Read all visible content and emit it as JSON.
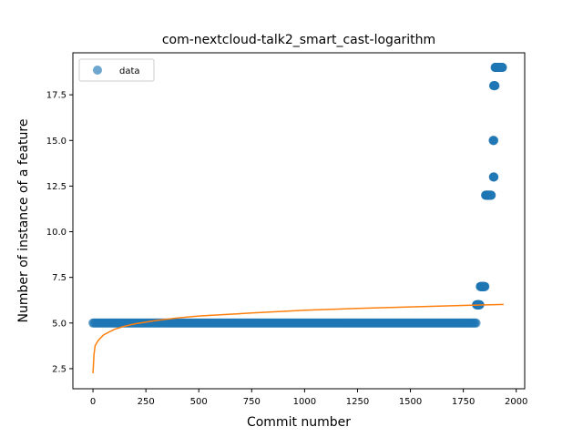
{
  "chart_data": {
    "type": "scatter",
    "title": "com-nextcloud-talk2_smart_cast-logarithm",
    "xlabel": "Commit number",
    "ylabel": "Number of instance of a feature",
    "xlim": [
      -95,
      2040
    ],
    "ylim": [
      1.4,
      19.8
    ],
    "xticks": [
      0,
      250,
      500,
      750,
      1000,
      1250,
      1500,
      1750,
      2000
    ],
    "xtick_labels": [
      "0",
      "250",
      "500",
      "750",
      "1000",
      "1250",
      "1500",
      "1750",
      "2000"
    ],
    "yticks": [
      2.5,
      5.0,
      7.5,
      10.0,
      12.5,
      15.0,
      17.5
    ],
    "ytick_labels": [
      "2.5",
      "5.0",
      "7.5",
      "10.0",
      "12.5",
      "15.0",
      "17.5"
    ],
    "grid": false,
    "legend": {
      "position": "upper-left",
      "entries": [
        "data"
      ]
    },
    "colors": {
      "data": "#1f77b4",
      "fit": "#ff7f0e"
    },
    "series": [
      {
        "name": "data",
        "kind": "scatter",
        "segments": [
          {
            "x_start": 0,
            "x_end": 1810,
            "y": 5
          },
          {
            "x_start": 1812,
            "x_end": 1828,
            "y": 6
          },
          {
            "x_start": 1830,
            "x_end": 1852,
            "y": 7
          },
          {
            "x_start": 1855,
            "x_end": 1882,
            "y": 12
          },
          {
            "x_start": 1892,
            "x_end": 1895,
            "y": 13
          },
          {
            "x_start": 1891,
            "x_end": 1894,
            "y": 15
          },
          {
            "x_start": 1893,
            "x_end": 1900,
            "y": 18
          },
          {
            "x_start": 1900,
            "x_end": 1935,
            "y": 19
          }
        ]
      },
      {
        "name": "",
        "kind": "line",
        "model": "logarithmic",
        "points": [
          [
            0,
            2.25
          ],
          [
            5,
            3.3
          ],
          [
            10,
            3.75
          ],
          [
            25,
            4.05
          ],
          [
            50,
            4.35
          ],
          [
            100,
            4.65
          ],
          [
            150,
            4.83
          ],
          [
            200,
            4.96
          ],
          [
            300,
            5.14
          ],
          [
            400,
            5.28
          ],
          [
            500,
            5.38
          ],
          [
            750,
            5.55
          ],
          [
            1000,
            5.7
          ],
          [
            1250,
            5.8
          ],
          [
            1500,
            5.88
          ],
          [
            1750,
            5.96
          ],
          [
            1940,
            6.02
          ]
        ]
      }
    ]
  }
}
